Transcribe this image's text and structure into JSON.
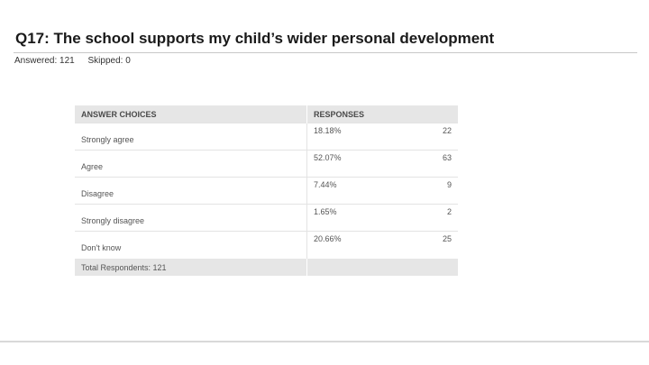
{
  "question": {
    "title": "Q17: The school supports my child’s wider personal development",
    "answered": "Answered: 121",
    "skipped": "Skipped: 0"
  },
  "table": {
    "headers": {
      "choices": "ANSWER CHOICES",
      "responses": "RESPONSES"
    },
    "rows": [
      {
        "choice": "Strongly agree",
        "percent": "18.18%",
        "count": "22"
      },
      {
        "choice": "Agree",
        "percent": "52.07%",
        "count": "63"
      },
      {
        "choice": "Disagree",
        "percent": "7.44%",
        "count": "9"
      },
      {
        "choice": "Strongly disagree",
        "percent": "1.65%",
        "count": "2"
      },
      {
        "choice": "Don't know",
        "percent": "20.66%",
        "count": "25"
      }
    ],
    "total": "Total Respondents: 121"
  }
}
